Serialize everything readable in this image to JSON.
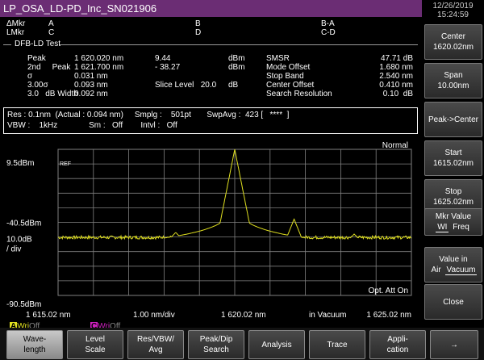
{
  "window": {
    "title": "LP_OSA_LD-PD_Inc_SN021906",
    "date": "12/26/2019",
    "time": "15:24:59"
  },
  "markers": {
    "delta_label": "ΔMkr",
    "l_label": "LMkr",
    "a": "A",
    "b": "B",
    "c": "C",
    "d": "D",
    "ba": "B-A",
    "cd": "C-D"
  },
  "dfb": {
    "title": "DFB-LD Test",
    "rows": [
      {
        "label": "Peak",
        "wl": "1 620.020 nm",
        "val": "9.44",
        "unit": "dBm"
      },
      {
        "label": "2nd     Peak",
        "wl": "1 621.700 nm",
        "val": "- 38.27",
        "unit": "dBm"
      },
      {
        "label": "σ",
        "wl": "0.031 nm",
        "val": "",
        "unit": ""
      },
      {
        "label": "3.00σ",
        "wl": "0.093 nm",
        "val": "Slice Level   20.0",
        "unit": "dB"
      },
      {
        "label": "3.0   dB Width",
        "wl": "0.092 nm",
        "val": "",
        "unit": ""
      }
    ],
    "right": [
      {
        "label": "SMSR",
        "val": "47.71 dB"
      },
      {
        "label": "Mode Offset",
        "val": "1.680 nm"
      },
      {
        "label": "Stop Band",
        "val": "2.540 nm"
      },
      {
        "label": "Center Offset",
        "val": "0.410 nm"
      },
      {
        "label": "Search Resolution",
        "val": "0.10  dB"
      }
    ]
  },
  "res": {
    "line1": "Res : 0.1nm  (Actual : 0.094 nm)     Smplg :    501pt       SwpAvg :  423 [   ****  ]",
    "line2": "VBW :    1kHz              Sm :   Off        Intvl :   Off"
  },
  "trace": {
    "mode": "Normal",
    "ref_label": "REF",
    "y_top": "9.5dBm",
    "y_ref": "-40.5dBm",
    "y_scale": "10.0dB\n/ div",
    "y_bottom": "-90.5dBm",
    "x_left": "1 615.02 nm",
    "x_div": "1.00 nm/div",
    "x_center": "1 620.02 nm",
    "x_medium": "in Vacuum",
    "x_right": "1 625.02 nm",
    "opt_att": "Opt. Att On",
    "trace_a": "A",
    "trace_a_state": "Wri",
    "trace_a_off": "Off",
    "trace_c": "C",
    "trace_c_state": "Wri",
    "trace_c_off": "Off",
    "colors": {
      "trace": "#e0e020",
      "grid": "#808080",
      "accent": "#6b2d74"
    }
  },
  "softkeys": [
    {
      "label": "Center",
      "value": "1620.02nm"
    },
    {
      "label": "Span",
      "value": "10.00nm"
    },
    {
      "label": "Peak->Center",
      "value": ""
    },
    {
      "label": "Start",
      "value": "1615.02nm"
    },
    {
      "label": "Stop",
      "value": "1625.02nm"
    },
    {
      "label": "Mkr Value",
      "opt1": "WI",
      "opt2": "Freq"
    },
    {
      "label": "Value in",
      "opt1": "Air",
      "opt2": "Vacuum"
    },
    {
      "label": "Close",
      "value": ""
    }
  ],
  "bottomkeys": [
    {
      "l1": "Wave-",
      "l2": "length"
    },
    {
      "l1": "Level",
      "l2": "Scale"
    },
    {
      "l1": "Res/VBW/",
      "l2": "Avg"
    },
    {
      "l1": "Peak/Dip",
      "l2": "Search"
    },
    {
      "l1": "Analysis",
      "l2": ""
    },
    {
      "l1": "Trace",
      "l2": ""
    },
    {
      "l1": "Appli-",
      "l2": "cation"
    },
    {
      "l1": "→",
      "l2": ""
    }
  ]
}
